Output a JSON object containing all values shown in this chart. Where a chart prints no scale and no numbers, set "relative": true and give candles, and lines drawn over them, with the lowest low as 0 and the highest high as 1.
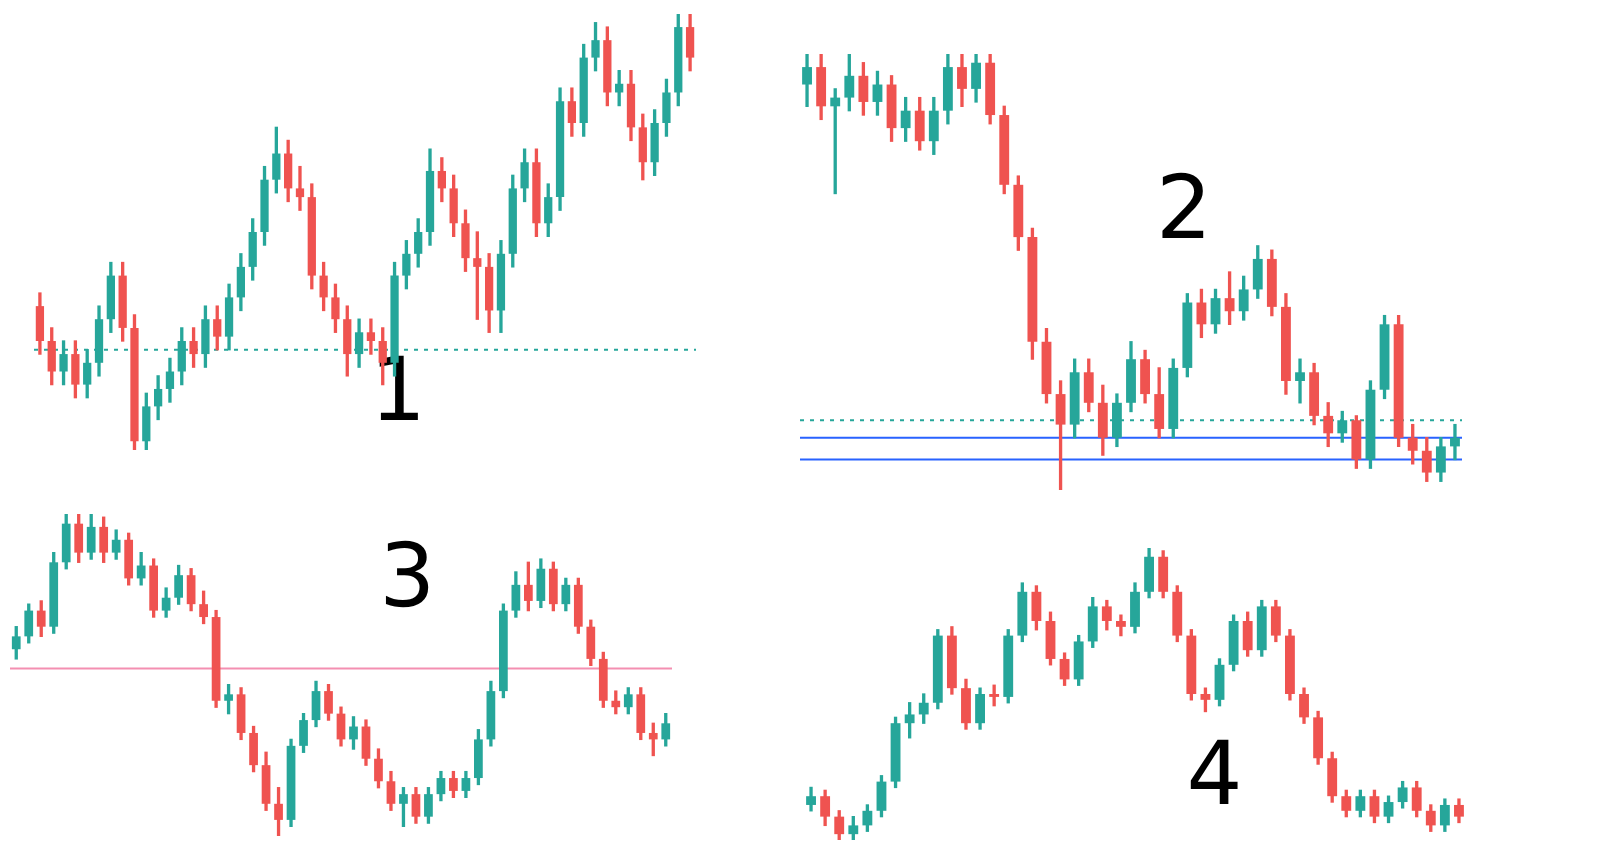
{
  "chart_data": [
    {
      "type": "candlestick",
      "relative": true,
      "categories": [
        null,
        null,
        null,
        null,
        null,
        null,
        null,
        null,
        null,
        null,
        null,
        null,
        null,
        null,
        null,
        null,
        null,
        null,
        null,
        null,
        null,
        null,
        null,
        null,
        null,
        null,
        null,
        null,
        null,
        null,
        null,
        null,
        null,
        null,
        null,
        null,
        null,
        null,
        null,
        null,
        null,
        null,
        null,
        null,
        null,
        null,
        null,
        null,
        null,
        null,
        null,
        null,
        null,
        null,
        null,
        null
      ],
      "ohlc": [
        [
          0.33,
          0.36,
          0.22,
          0.25
        ],
        [
          0.25,
          0.28,
          0.15,
          0.18
        ],
        [
          0.18,
          0.25,
          0.15,
          0.22
        ],
        [
          0.22,
          0.25,
          0.12,
          0.15
        ],
        [
          0.15,
          0.23,
          0.12,
          0.2
        ],
        [
          0.2,
          0.33,
          0.17,
          0.3
        ],
        [
          0.3,
          0.43,
          0.27,
          0.4
        ],
        [
          0.4,
          0.43,
          0.25,
          0.28
        ],
        [
          0.28,
          0.31,
          0,
          0.02
        ],
        [
          0.02,
          0.13,
          0,
          0.1
        ],
        [
          0.1,
          0.17,
          0.07,
          0.14
        ],
        [
          0.14,
          0.21,
          0.11,
          0.18
        ],
        [
          0.18,
          0.28,
          0.15,
          0.25
        ],
        [
          0.25,
          0.28,
          0.19,
          0.22
        ],
        [
          0.22,
          0.33,
          0.19,
          0.3
        ],
        [
          0.3,
          0.33,
          0.23,
          0.26
        ],
        [
          0.26,
          0.38,
          0.23,
          0.35
        ],
        [
          0.35,
          0.45,
          0.32,
          0.42
        ],
        [
          0.42,
          0.53,
          0.39,
          0.5
        ],
        [
          0.5,
          0.65,
          0.47,
          0.62
        ],
        [
          0.62,
          0.74,
          0.59,
          0.68
        ],
        [
          0.68,
          0.71,
          0.57,
          0.6
        ],
        [
          0.6,
          0.65,
          0.55,
          0.58
        ],
        [
          0.58,
          0.61,
          0.37,
          0.4
        ],
        [
          0.4,
          0.43,
          0.32,
          0.35
        ],
        [
          0.35,
          0.38,
          0.27,
          0.3
        ],
        [
          0.3,
          0.33,
          0.17,
          0.22
        ],
        [
          0.22,
          0.3,
          0.19,
          0.27
        ],
        [
          0.27,
          0.3,
          0.22,
          0.25
        ],
        [
          0.25,
          0.28,
          0.15,
          0.2
        ],
        [
          0.2,
          0.43,
          0.17,
          0.4
        ],
        [
          0.4,
          0.48,
          0.37,
          0.45
        ],
        [
          0.45,
          0.53,
          0.42,
          0.5
        ],
        [
          0.5,
          0.69,
          0.47,
          0.64
        ],
        [
          0.64,
          0.67,
          0.57,
          0.6
        ],
        [
          0.6,
          0.63,
          0.49,
          0.52
        ],
        [
          0.52,
          0.55,
          0.41,
          0.44
        ],
        [
          0.44,
          0.5,
          0.3,
          0.42
        ],
        [
          0.42,
          0.45,
          0.27,
          0.32
        ],
        [
          0.32,
          0.48,
          0.27,
          0.45
        ],
        [
          0.45,
          0.63,
          0.42,
          0.6
        ],
        [
          0.6,
          0.69,
          0.57,
          0.66
        ],
        [
          0.66,
          0.69,
          0.49,
          0.52
        ],
        [
          0.52,
          0.61,
          0.49,
          0.58
        ],
        [
          0.58,
          0.83,
          0.55,
          0.8
        ],
        [
          0.8,
          0.83,
          0.72,
          0.75
        ],
        [
          0.75,
          0.93,
          0.72,
          0.9
        ],
        [
          0.9,
          0.98,
          0.87,
          0.94
        ],
        [
          0.94,
          0.97,
          0.79,
          0.82
        ],
        [
          0.82,
          0.87,
          0.79,
          0.84
        ],
        [
          0.84,
          0.87,
          0.71,
          0.74
        ],
        [
          0.74,
          0.77,
          0.62,
          0.66
        ],
        [
          0.66,
          0.78,
          0.63,
          0.75
        ],
        [
          0.75,
          0.85,
          0.72,
          0.82
        ],
        [
          0.82,
          1,
          0.79,
          0.97
        ],
        [
          0.97,
          1,
          0.87,
          0.9
        ]
      ],
      "ref_lines": [
        {
          "axis": "y",
          "value": 0.23,
          "color": "#26a69a",
          "line_style": "dotted"
        }
      ],
      "annotations": [
        "1"
      ],
      "tick_labels": false
    },
    {
      "type": "candlestick",
      "relative": true,
      "categories": [
        null,
        null,
        null,
        null,
        null,
        null,
        null,
        null,
        null,
        null,
        null,
        null,
        null,
        null,
        null,
        null,
        null,
        null,
        null,
        null,
        null,
        null,
        null,
        null,
        null,
        null,
        null,
        null,
        null,
        null,
        null,
        null,
        null,
        null,
        null,
        null,
        null,
        null,
        null,
        null,
        null,
        null,
        null,
        null,
        null,
        null,
        null
      ],
      "ohlc": [
        [
          0.93,
          1,
          0.88,
          0.97
        ],
        [
          0.97,
          1,
          0.85,
          0.88
        ],
        [
          0.88,
          0.92,
          0.68,
          0.9
        ],
        [
          0.9,
          1,
          0.87,
          0.95
        ],
        [
          0.95,
          0.98,
          0.86,
          0.89
        ],
        [
          0.89,
          0.96,
          0.86,
          0.93
        ],
        [
          0.93,
          0.95,
          0.8,
          0.83
        ],
        [
          0.83,
          0.9,
          0.8,
          0.87
        ],
        [
          0.87,
          0.9,
          0.78,
          0.8
        ],
        [
          0.8,
          0.9,
          0.77,
          0.87
        ],
        [
          0.87,
          1,
          0.84,
          0.97
        ],
        [
          0.97,
          1,
          0.88,
          0.92
        ],
        [
          0.92,
          1,
          0.89,
          0.98
        ],
        [
          0.98,
          1,
          0.84,
          0.86
        ],
        [
          0.86,
          0.88,
          0.68,
          0.7
        ],
        [
          0.7,
          0.72,
          0.55,
          0.58
        ],
        [
          0.58,
          0.6,
          0.3,
          0.34
        ],
        [
          0.34,
          0.37,
          0.2,
          0.22
        ],
        [
          0.22,
          0.25,
          0,
          0.15
        ],
        [
          0.15,
          0.3,
          0.12,
          0.27
        ],
        [
          0.27,
          0.3,
          0.18,
          0.2
        ],
        [
          0.2,
          0.24,
          0.08,
          0.12
        ],
        [
          0.12,
          0.22,
          0.1,
          0.2
        ],
        [
          0.2,
          0.34,
          0.18,
          0.3
        ],
        [
          0.3,
          0.32,
          0.2,
          0.22
        ],
        [
          0.22,
          0.28,
          0.12,
          0.14
        ],
        [
          0.14,
          0.3,
          0.12,
          0.28
        ],
        [
          0.28,
          0.45,
          0.26,
          0.43
        ],
        [
          0.43,
          0.46,
          0.35,
          0.38
        ],
        [
          0.38,
          0.46,
          0.36,
          0.44
        ],
        [
          0.44,
          0.5,
          0.38,
          0.41
        ],
        [
          0.41,
          0.49,
          0.39,
          0.46
        ],
        [
          0.46,
          0.56,
          0.44,
          0.53
        ],
        [
          0.53,
          0.55,
          0.4,
          0.42
        ],
        [
          0.42,
          0.45,
          0.22,
          0.25
        ],
        [
          0.25,
          0.3,
          0.2,
          0.27
        ],
        [
          0.27,
          0.29,
          0.15,
          0.17
        ],
        [
          0.17,
          0.2,
          0.1,
          0.13
        ],
        [
          0.13,
          0.18,
          0.11,
          0.16
        ],
        [
          0.16,
          0.17,
          0.05,
          0.07
        ],
        [
          0.07,
          0.25,
          0.05,
          0.23
        ],
        [
          0.23,
          0.4,
          0.21,
          0.38
        ],
        [
          0.38,
          0.4,
          0.1,
          0.12
        ],
        [
          0.12,
          0.15,
          0.06,
          0.09
        ],
        [
          0.09,
          0.12,
          0.02,
          0.04
        ],
        [
          0.04,
          0.12,
          0.02,
          0.1
        ],
        [
          0.1,
          0.15,
          0.07,
          0.12
        ]
      ],
      "ref_lines": [
        {
          "axis": "y",
          "value": 0.16,
          "color": "#26a69a",
          "line_style": "dotted"
        },
        {
          "axis": "y",
          "value": 0.12,
          "color": "#2962ff",
          "line_style": "solid"
        },
        {
          "axis": "y",
          "value": 0.07,
          "color": "#2962ff",
          "line_style": "solid"
        }
      ],
      "annotations": [
        "2"
      ],
      "tick_labels": false
    },
    {
      "type": "candlestick",
      "relative": true,
      "categories": [
        null,
        null,
        null,
        null,
        null,
        null,
        null,
        null,
        null,
        null,
        null,
        null,
        null,
        null,
        null,
        null,
        null,
        null,
        null,
        null,
        null,
        null,
        null,
        null,
        null,
        null,
        null,
        null,
        null,
        null,
        null,
        null,
        null,
        null,
        null,
        null,
        null,
        null,
        null,
        null,
        null,
        null,
        null,
        null,
        null,
        null,
        null,
        null,
        null,
        null,
        null,
        null,
        null
      ],
      "ohlc": [
        [
          0.58,
          0.65,
          0.55,
          0.62
        ],
        [
          0.62,
          0.72,
          0.6,
          0.7
        ],
        [
          0.7,
          0.73,
          0.62,
          0.65
        ],
        [
          0.65,
          0.88,
          0.63,
          0.85
        ],
        [
          0.85,
          1,
          0.83,
          0.97
        ],
        [
          0.97,
          1,
          0.85,
          0.88
        ],
        [
          0.88,
          1,
          0.86,
          0.96
        ],
        [
          0.96,
          0.99,
          0.85,
          0.88
        ],
        [
          0.88,
          0.95,
          0.86,
          0.92
        ],
        [
          0.92,
          0.94,
          0.78,
          0.8
        ],
        [
          0.8,
          0.88,
          0.78,
          0.84
        ],
        [
          0.84,
          0.86,
          0.68,
          0.7
        ],
        [
          0.7,
          0.77,
          0.68,
          0.74
        ],
        [
          0.74,
          0.84,
          0.72,
          0.81
        ],
        [
          0.81,
          0.83,
          0.7,
          0.72
        ],
        [
          0.72,
          0.76,
          0.66,
          0.68
        ],
        [
          0.68,
          0.7,
          0.4,
          0.42
        ],
        [
          0.42,
          0.47,
          0.38,
          0.44
        ],
        [
          0.44,
          0.46,
          0.3,
          0.32
        ],
        [
          0.32,
          0.34,
          0.2,
          0.22
        ],
        [
          0.22,
          0.26,
          0.08,
          0.1
        ],
        [
          0.1,
          0.15,
          0,
          0.05
        ],
        [
          0.05,
          0.3,
          0.03,
          0.28
        ],
        [
          0.28,
          0.38,
          0.26,
          0.36
        ],
        [
          0.36,
          0.48,
          0.34,
          0.45
        ],
        [
          0.45,
          0.47,
          0.36,
          0.38
        ],
        [
          0.38,
          0.4,
          0.28,
          0.3
        ],
        [
          0.3,
          0.37,
          0.27,
          0.34
        ],
        [
          0.34,
          0.36,
          0.22,
          0.24
        ],
        [
          0.24,
          0.27,
          0.15,
          0.17
        ],
        [
          0.17,
          0.2,
          0.08,
          0.1
        ],
        [
          0.1,
          0.15,
          0.03,
          0.13
        ],
        [
          0.13,
          0.15,
          0.04,
          0.06
        ],
        [
          0.06,
          0.15,
          0.04,
          0.13
        ],
        [
          0.13,
          0.2,
          0.11,
          0.18
        ],
        [
          0.18,
          0.2,
          0.12,
          0.14
        ],
        [
          0.14,
          0.2,
          0.12,
          0.18
        ],
        [
          0.18,
          0.33,
          0.16,
          0.3
        ],
        [
          0.3,
          0.48,
          0.28,
          0.45
        ],
        [
          0.45,
          0.72,
          0.43,
          0.7
        ],
        [
          0.7,
          0.82,
          0.68,
          0.78
        ],
        [
          0.78,
          0.85,
          0.7,
          0.73
        ],
        [
          0.73,
          0.86,
          0.71,
          0.83
        ],
        [
          0.83,
          0.85,
          0.7,
          0.72
        ],
        [
          0.72,
          0.8,
          0.7,
          0.78
        ],
        [
          0.78,
          0.8,
          0.63,
          0.65
        ],
        [
          0.65,
          0.67,
          0.53,
          0.55
        ],
        [
          0.55,
          0.57,
          0.4,
          0.42
        ],
        [
          0.42,
          0.45,
          0.38,
          0.4
        ],
        [
          0.4,
          0.46,
          0.38,
          0.44
        ],
        [
          0.44,
          0.46,
          0.3,
          0.32
        ],
        [
          0.32,
          0.35,
          0.25,
          0.3
        ],
        [
          0.3,
          0.38,
          0.28,
          0.35
        ]
      ],
      "ref_lines": [
        {
          "axis": "y",
          "value": 0.52,
          "color": "#f48fb1",
          "line_style": "solid"
        }
      ],
      "annotations": [
        "3"
      ],
      "tick_labels": false
    },
    {
      "type": "candlestick",
      "relative": true,
      "categories": [
        null,
        null,
        null,
        null,
        null,
        null,
        null,
        null,
        null,
        null,
        null,
        null,
        null,
        null,
        null,
        null,
        null,
        null,
        null,
        null,
        null,
        null,
        null,
        null,
        null,
        null,
        null,
        null,
        null,
        null,
        null,
        null,
        null,
        null,
        null,
        null,
        null,
        null,
        null,
        null,
        null,
        null,
        null,
        null,
        null,
        null,
        null
      ],
      "ohlc": [
        [
          0.12,
          0.18,
          0.1,
          0.15
        ],
        [
          0.15,
          0.17,
          0.05,
          0.08
        ],
        [
          0.08,
          0.1,
          0,
          0.02
        ],
        [
          0.02,
          0.08,
          0,
          0.05
        ],
        [
          0.05,
          0.12,
          0.03,
          0.1
        ],
        [
          0.1,
          0.22,
          0.08,
          0.2
        ],
        [
          0.2,
          0.42,
          0.18,
          0.4
        ],
        [
          0.4,
          0.47,
          0.35,
          0.43
        ],
        [
          0.43,
          0.5,
          0.4,
          0.47
        ],
        [
          0.47,
          0.72,
          0.45,
          0.7
        ],
        [
          0.7,
          0.73,
          0.5,
          0.52
        ],
        [
          0.52,
          0.55,
          0.38,
          0.4
        ],
        [
          0.4,
          0.52,
          0.38,
          0.5
        ],
        [
          0.5,
          0.53,
          0.46,
          0.49
        ],
        [
          0.49,
          0.72,
          0.47,
          0.7
        ],
        [
          0.7,
          0.88,
          0.68,
          0.85
        ],
        [
          0.85,
          0.87,
          0.72,
          0.75
        ],
        [
          0.75,
          0.78,
          0.6,
          0.62
        ],
        [
          0.62,
          0.64,
          0.53,
          0.55
        ],
        [
          0.55,
          0.7,
          0.53,
          0.68
        ],
        [
          0.68,
          0.83,
          0.66,
          0.8
        ],
        [
          0.8,
          0.82,
          0.72,
          0.75
        ],
        [
          0.75,
          0.77,
          0.7,
          0.73
        ],
        [
          0.73,
          0.88,
          0.71,
          0.85
        ],
        [
          0.85,
          1,
          0.83,
          0.97
        ],
        [
          0.97,
          0.99,
          0.83,
          0.85
        ],
        [
          0.85,
          0.87,
          0.68,
          0.7
        ],
        [
          0.7,
          0.72,
          0.48,
          0.5
        ],
        [
          0.5,
          0.52,
          0.44,
          0.48
        ],
        [
          0.48,
          0.62,
          0.46,
          0.6
        ],
        [
          0.6,
          0.77,
          0.58,
          0.75
        ],
        [
          0.75,
          0.78,
          0.63,
          0.65
        ],
        [
          0.65,
          0.82,
          0.63,
          0.8
        ],
        [
          0.8,
          0.82,
          0.68,
          0.7
        ],
        [
          0.7,
          0.72,
          0.48,
          0.5
        ],
        [
          0.5,
          0.52,
          0.4,
          0.42
        ],
        [
          0.42,
          0.44,
          0.26,
          0.28
        ],
        [
          0.28,
          0.3,
          0.13,
          0.15
        ],
        [
          0.15,
          0.17,
          0.08,
          0.1
        ],
        [
          0.1,
          0.17,
          0.08,
          0.15
        ],
        [
          0.15,
          0.17,
          0.06,
          0.08
        ],
        [
          0.08,
          0.15,
          0.06,
          0.13
        ],
        [
          0.13,
          0.2,
          0.11,
          0.18
        ],
        [
          0.18,
          0.2,
          0.08,
          0.1
        ],
        [
          0.1,
          0.12,
          0.03,
          0.05
        ],
        [
          0.05,
          0.14,
          0.03,
          0.12
        ],
        [
          0.12,
          0.14,
          0.06,
          0.08
        ]
      ],
      "annotations": [
        "4"
      ],
      "tick_labels": false
    }
  ]
}
